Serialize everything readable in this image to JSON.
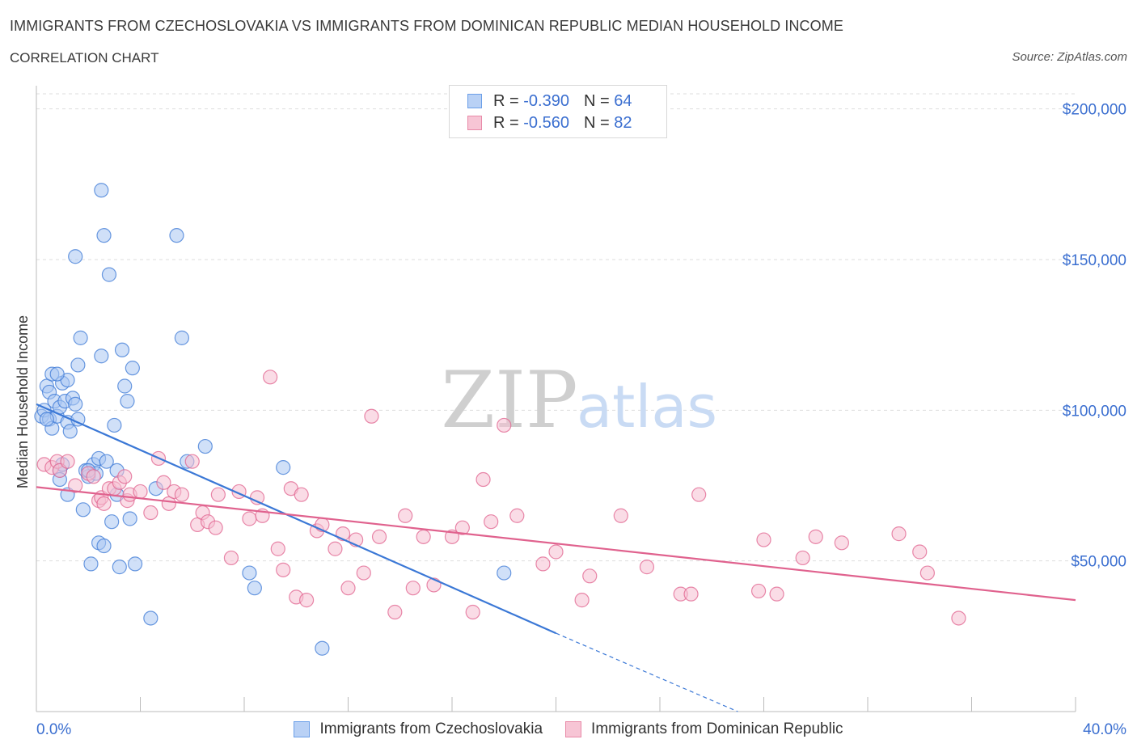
{
  "title": "IMMIGRANTS FROM CZECHOSLOVAKIA VS IMMIGRANTS FROM DOMINICAN REPUBLIC MEDIAN HOUSEHOLD INCOME",
  "subtitle": "CORRELATION CHART",
  "source": "Source: ZipAtlas.com",
  "watermark": {
    "zip": "ZIP",
    "atlas": "atlas"
  },
  "legend": {
    "rows": [
      {
        "r_label": "R =",
        "r_value": "-0.390",
        "n_label": "N =",
        "n_value": "64",
        "color": "#6b9fe8",
        "fill": "#b9d1f5"
      },
      {
        "r_label": "R =",
        "r_value": "-0.560",
        "n_label": "N =",
        "n_value": "82",
        "color": "#e88aa8",
        "fill": "#f7c5d5"
      }
    ]
  },
  "bottom_legend": {
    "items": [
      "Immigrants from Czechoslovakia",
      "Immigrants from Dominican Republic"
    ]
  },
  "chart_data": {
    "type": "scatter",
    "xlabel": "",
    "ylabel": "Median Household Income",
    "xlim": [
      0,
      40
    ],
    "ylim": [
      0,
      205000
    ],
    "x_tick_labels": {
      "left": "0.0%",
      "right": "40.0%"
    },
    "y_ticks": [
      {
        "value": 50000,
        "label": "$50,000"
      },
      {
        "value": 100000,
        "label": "$100,000"
      },
      {
        "value": 150000,
        "label": "$150,000"
      },
      {
        "value": 200000,
        "label": "$200,000"
      }
    ],
    "series": [
      {
        "name": "Immigrants from Czechoslovakia",
        "color": "#3b78d6",
        "fill": "#a9c7f2",
        "trend": {
          "x0": 0,
          "y0": 102000,
          "x1": 20,
          "y1": 26000,
          "dash_to_x": 27,
          "dash_to_y": 0
        },
        "points": [
          [
            0.2,
            98000
          ],
          [
            0.3,
            100000
          ],
          [
            0.4,
            108000
          ],
          [
            0.5,
            106000
          ],
          [
            0.5,
            97000
          ],
          [
            0.6,
            94000
          ],
          [
            0.6,
            112000
          ],
          [
            0.7,
            103000
          ],
          [
            0.8,
            98000
          ],
          [
            0.9,
            101000
          ],
          [
            0.9,
            80000
          ],
          [
            0.9,
            77000
          ],
          [
            1.0,
            109000
          ],
          [
            1.1,
            103000
          ],
          [
            1.2,
            110000
          ],
          [
            1.2,
            96000
          ],
          [
            1.3,
            93000
          ],
          [
            1.4,
            104000
          ],
          [
            1.5,
            102000
          ],
          [
            1.6,
            97000
          ],
          [
            1.6,
            115000
          ],
          [
            1.7,
            124000
          ],
          [
            1.8,
            67000
          ],
          [
            1.9,
            80000
          ],
          [
            2.0,
            78000
          ],
          [
            2.1,
            49000
          ],
          [
            2.2,
            82000
          ],
          [
            2.3,
            79000
          ],
          [
            2.4,
            56000
          ],
          [
            2.4,
            84000
          ],
          [
            2.5,
            118000
          ],
          [
            2.5,
            173000
          ],
          [
            2.6,
            55000
          ],
          [
            2.6,
            158000
          ],
          [
            2.7,
            83000
          ],
          [
            2.8,
            145000
          ],
          [
            2.9,
            63000
          ],
          [
            3.0,
            95000
          ],
          [
            3.1,
            80000
          ],
          [
            3.1,
            72000
          ],
          [
            3.2,
            48000
          ],
          [
            3.3,
            120000
          ],
          [
            3.4,
            108000
          ],
          [
            3.5,
            103000
          ],
          [
            3.6,
            64000
          ],
          [
            3.7,
            114000
          ],
          [
            3.8,
            49000
          ],
          [
            4.4,
            31000
          ],
          [
            4.6,
            74000
          ],
          [
            5.4,
            158000
          ],
          [
            5.6,
            124000
          ],
          [
            5.8,
            83000
          ],
          [
            6.5,
            88000
          ],
          [
            8.2,
            46000
          ],
          [
            8.4,
            41000
          ],
          [
            9.5,
            81000
          ],
          [
            11.0,
            21000
          ],
          [
            18.0,
            46000
          ],
          [
            1.5,
            151000
          ],
          [
            0.8,
            112000
          ],
          [
            1.2,
            72000
          ],
          [
            2.0,
            80000
          ],
          [
            1.0,
            82000
          ],
          [
            0.4,
            97000
          ]
        ]
      },
      {
        "name": "Immigrants from Dominican Republic",
        "color": "#e0628e",
        "fill": "#f6bfd1",
        "trend": {
          "x0": 0,
          "y0": 74500,
          "x1": 40,
          "y1": 37000
        },
        "points": [
          [
            0.3,
            82000
          ],
          [
            0.6,
            81000
          ],
          [
            0.8,
            83000
          ],
          [
            0.9,
            80000
          ],
          [
            1.2,
            83000
          ],
          [
            1.5,
            75000
          ],
          [
            2.0,
            79000
          ],
          [
            2.2,
            78000
          ],
          [
            2.4,
            70000
          ],
          [
            2.5,
            71000
          ],
          [
            2.6,
            69000
          ],
          [
            2.8,
            74000
          ],
          [
            3.0,
            74000
          ],
          [
            3.2,
            76000
          ],
          [
            3.4,
            78000
          ],
          [
            3.5,
            70000
          ],
          [
            3.6,
            72000
          ],
          [
            4.0,
            73000
          ],
          [
            4.4,
            66000
          ],
          [
            4.7,
            84000
          ],
          [
            4.9,
            76000
          ],
          [
            5.1,
            69000
          ],
          [
            5.3,
            73000
          ],
          [
            5.6,
            72000
          ],
          [
            6.0,
            83000
          ],
          [
            6.2,
            62000
          ],
          [
            6.4,
            66000
          ],
          [
            6.6,
            63000
          ],
          [
            6.9,
            61000
          ],
          [
            7.0,
            72000
          ],
          [
            7.5,
            51000
          ],
          [
            7.8,
            73000
          ],
          [
            8.2,
            64000
          ],
          [
            8.5,
            71000
          ],
          [
            8.7,
            65000
          ],
          [
            9.0,
            111000
          ],
          [
            9.3,
            54000
          ],
          [
            9.5,
            47000
          ],
          [
            9.8,
            74000
          ],
          [
            10.0,
            38000
          ],
          [
            10.2,
            72000
          ],
          [
            10.4,
            37000
          ],
          [
            10.8,
            60000
          ],
          [
            11.0,
            62000
          ],
          [
            11.5,
            54000
          ],
          [
            11.8,
            59000
          ],
          [
            12.0,
            41000
          ],
          [
            12.3,
            57000
          ],
          [
            12.6,
            46000
          ],
          [
            12.9,
            98000
          ],
          [
            13.2,
            58000
          ],
          [
            13.8,
            33000
          ],
          [
            14.2,
            65000
          ],
          [
            14.5,
            41000
          ],
          [
            14.9,
            58000
          ],
          [
            15.3,
            42000
          ],
          [
            16.0,
            58000
          ],
          [
            16.4,
            61000
          ],
          [
            16.8,
            33000
          ],
          [
            17.2,
            77000
          ],
          [
            17.5,
            63000
          ],
          [
            18.0,
            95000
          ],
          [
            18.5,
            65000
          ],
          [
            19.5,
            49000
          ],
          [
            20.0,
            53000
          ],
          [
            21.0,
            37000
          ],
          [
            21.3,
            45000
          ],
          [
            22.5,
            65000
          ],
          [
            23.5,
            48000
          ],
          [
            24.8,
            39000
          ],
          [
            25.2,
            39000
          ],
          [
            25.5,
            72000
          ],
          [
            27.8,
            40000
          ],
          [
            28.0,
            57000
          ],
          [
            28.5,
            39000
          ],
          [
            29.5,
            51000
          ],
          [
            30.0,
            58000
          ],
          [
            31.0,
            56000
          ],
          [
            33.2,
            59000
          ],
          [
            34.0,
            53000
          ],
          [
            34.3,
            46000
          ],
          [
            35.5,
            31000
          ]
        ]
      }
    ]
  }
}
